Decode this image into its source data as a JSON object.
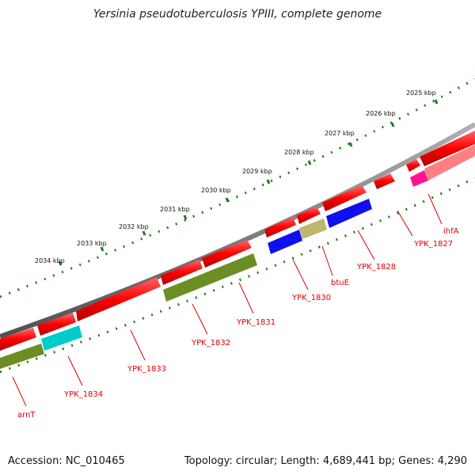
{
  "header": {
    "title": "Yersinia pseudotuberculosis YPIII, complete genome"
  },
  "footer": {
    "accession": "Accession: NC_010465",
    "summary": "Topology: circular; Length: 4,689,441 bp; Genes: 4,290"
  },
  "scale_labels": [
    "2025 kbp",
    "2026 kbp",
    "2027 kbp",
    "2028 kbp",
    "2029 kbp",
    "2030 kbp",
    "2031 kbp",
    "2032 kbp",
    "2033 kbp",
    "2034 kbp"
  ],
  "gene_labels": [
    "ihfA",
    "YPK_1827",
    "YPK_1828",
    "btuE",
    "YPK_1830",
    "YPK_1831",
    "YPK_1832",
    "YPK_1833",
    "YPK_1834",
    "arnT"
  ],
  "colors": {
    "backbone": "#808080",
    "cds_forward": "#ff0000",
    "scale": "#1e7a1e",
    "label": "#dd0000",
    "olive": "#6b8e23",
    "blue": "#1010ee",
    "khaki": "#bdb76b",
    "cyan": "#00cccc",
    "pink": "#ff8080",
    "magenta": "#ff1493"
  }
}
